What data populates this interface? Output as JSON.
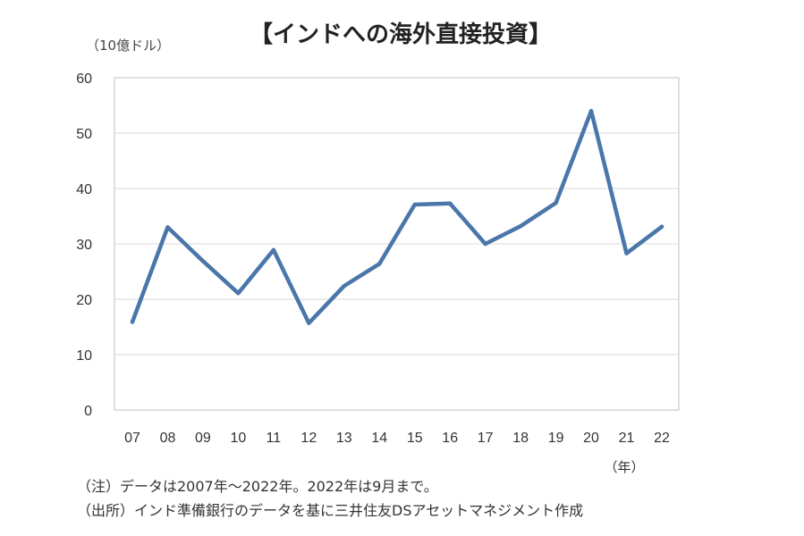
{
  "chart_data": {
    "type": "line",
    "title": "【インドへの海外直接投資】",
    "ylabel": "（10億ドル）",
    "xlabel": "（年）",
    "categories": [
      "07",
      "08",
      "09",
      "10",
      "11",
      "12",
      "13",
      "14",
      "15",
      "16",
      "17",
      "18",
      "19",
      "20",
      "21",
      "22"
    ],
    "series": [
      {
        "values": [
          15.9,
          33.0,
          26.9,
          21.1,
          28.9,
          15.7,
          22.4,
          26.4,
          37.1,
          37.3,
          30.0,
          33.2,
          37.4,
          54.0,
          28.3,
          33.1
        ]
      }
    ],
    "ylim": [
      0,
      60
    ],
    "yticks": [
      0,
      10,
      20,
      30,
      40,
      50,
      60
    ],
    "grid": true,
    "line_color": "#4a76aa"
  },
  "notes": [
    "（注）データは2007年～2022年。2022年は9月まで。",
    "（出所）インド準備銀行のデータを基に三井住友DSアセットマネジメント作成"
  ]
}
